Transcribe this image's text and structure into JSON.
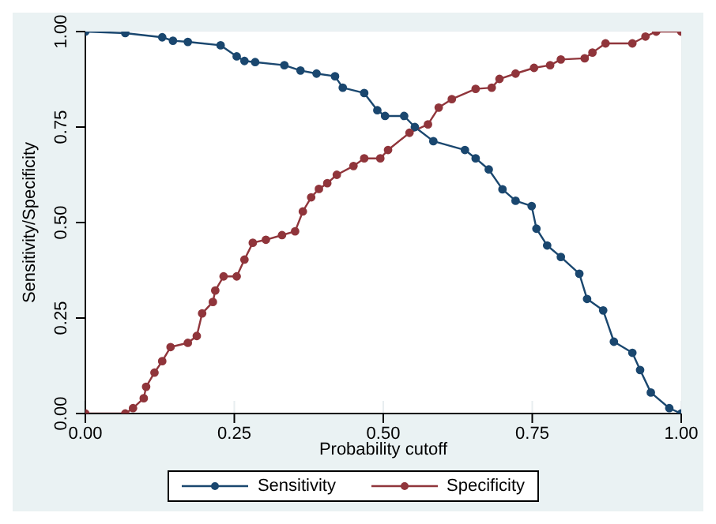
{
  "chart_data": {
    "type": "line",
    "xlabel": "Probability cutoff",
    "ylabel": "Sensitivity/Specificity",
    "xlim": [
      0,
      1
    ],
    "ylim": [
      0,
      1
    ],
    "xticks": [
      {
        "value": 0,
        "label": "0.00"
      },
      {
        "value": 0.25,
        "label": "0.25"
      },
      {
        "value": 0.5,
        "label": "0.50"
      },
      {
        "value": 0.75,
        "label": "0.75"
      },
      {
        "value": 1,
        "label": "1.00"
      }
    ],
    "yticks": [
      {
        "value": 0,
        "label": "0.00"
      },
      {
        "value": 0.25,
        "label": "0.25"
      },
      {
        "value": 0.5,
        "label": "0.50"
      },
      {
        "value": 0.75,
        "label": "0.75"
      },
      {
        "value": 1,
        "label": "1.00"
      }
    ],
    "grid": true,
    "legend": "bottom",
    "marker": "circle",
    "series": [
      {
        "name": "Sensitivity",
        "color": "#1a476f",
        "x": [
          0,
          0.067,
          0.129,
          0.147,
          0.172,
          0.227,
          0.254,
          0.267,
          0.285,
          0.334,
          0.361,
          0.388,
          0.419,
          0.432,
          0.468,
          0.49,
          0.503,
          0.535,
          0.553,
          0.584,
          0.637,
          0.655,
          0.677,
          0.7,
          0.722,
          0.749,
          0.757,
          0.775,
          0.798,
          0.829,
          0.842,
          0.869,
          0.887,
          0.918,
          0.931,
          0.949,
          0.98,
          1
        ],
        "values": [
          1,
          0.996,
          0.985,
          0.976,
          0.973,
          0.964,
          0.935,
          0.923,
          0.92,
          0.912,
          0.898,
          0.89,
          0.883,
          0.853,
          0.839,
          0.794,
          0.779,
          0.779,
          0.75,
          0.713,
          0.69,
          0.668,
          0.639,
          0.587,
          0.557,
          0.543,
          0.484,
          0.44,
          0.41,
          0.366,
          0.3,
          0.27,
          0.188,
          0.159,
          0.114,
          0.055,
          0.014,
          0
        ]
      },
      {
        "name": "Specificity",
        "color": "#90353b",
        "x": [
          0,
          0.067,
          0.08,
          0.098,
          0.102,
          0.116,
          0.129,
          0.143,
          0.172,
          0.187,
          0.196,
          0.214,
          0.218,
          0.232,
          0.254,
          0.267,
          0.281,
          0.303,
          0.33,
          0.352,
          0.365,
          0.379,
          0.392,
          0.406,
          0.422,
          0.45,
          0.468,
          0.495,
          0.508,
          0.544,
          0.575,
          0.593,
          0.615,
          0.655,
          0.682,
          0.695,
          0.722,
          0.753,
          0.78,
          0.798,
          0.838,
          0.851,
          0.873,
          0.918,
          0.94,
          0.958,
          1
        ],
        "values": [
          0,
          0,
          0.014,
          0.04,
          0.07,
          0.107,
          0.137,
          0.174,
          0.185,
          0.203,
          0.262,
          0.292,
          0.322,
          0.359,
          0.359,
          0.403,
          0.447,
          0.455,
          0.467,
          0.477,
          0.529,
          0.566,
          0.588,
          0.603,
          0.625,
          0.648,
          0.668,
          0.668,
          0.69,
          0.735,
          0.757,
          0.801,
          0.823,
          0.85,
          0.853,
          0.876,
          0.89,
          0.905,
          0.912,
          0.927,
          0.93,
          0.945,
          0.969,
          0.969,
          0.987,
          1,
          1
        ]
      }
    ]
  }
}
